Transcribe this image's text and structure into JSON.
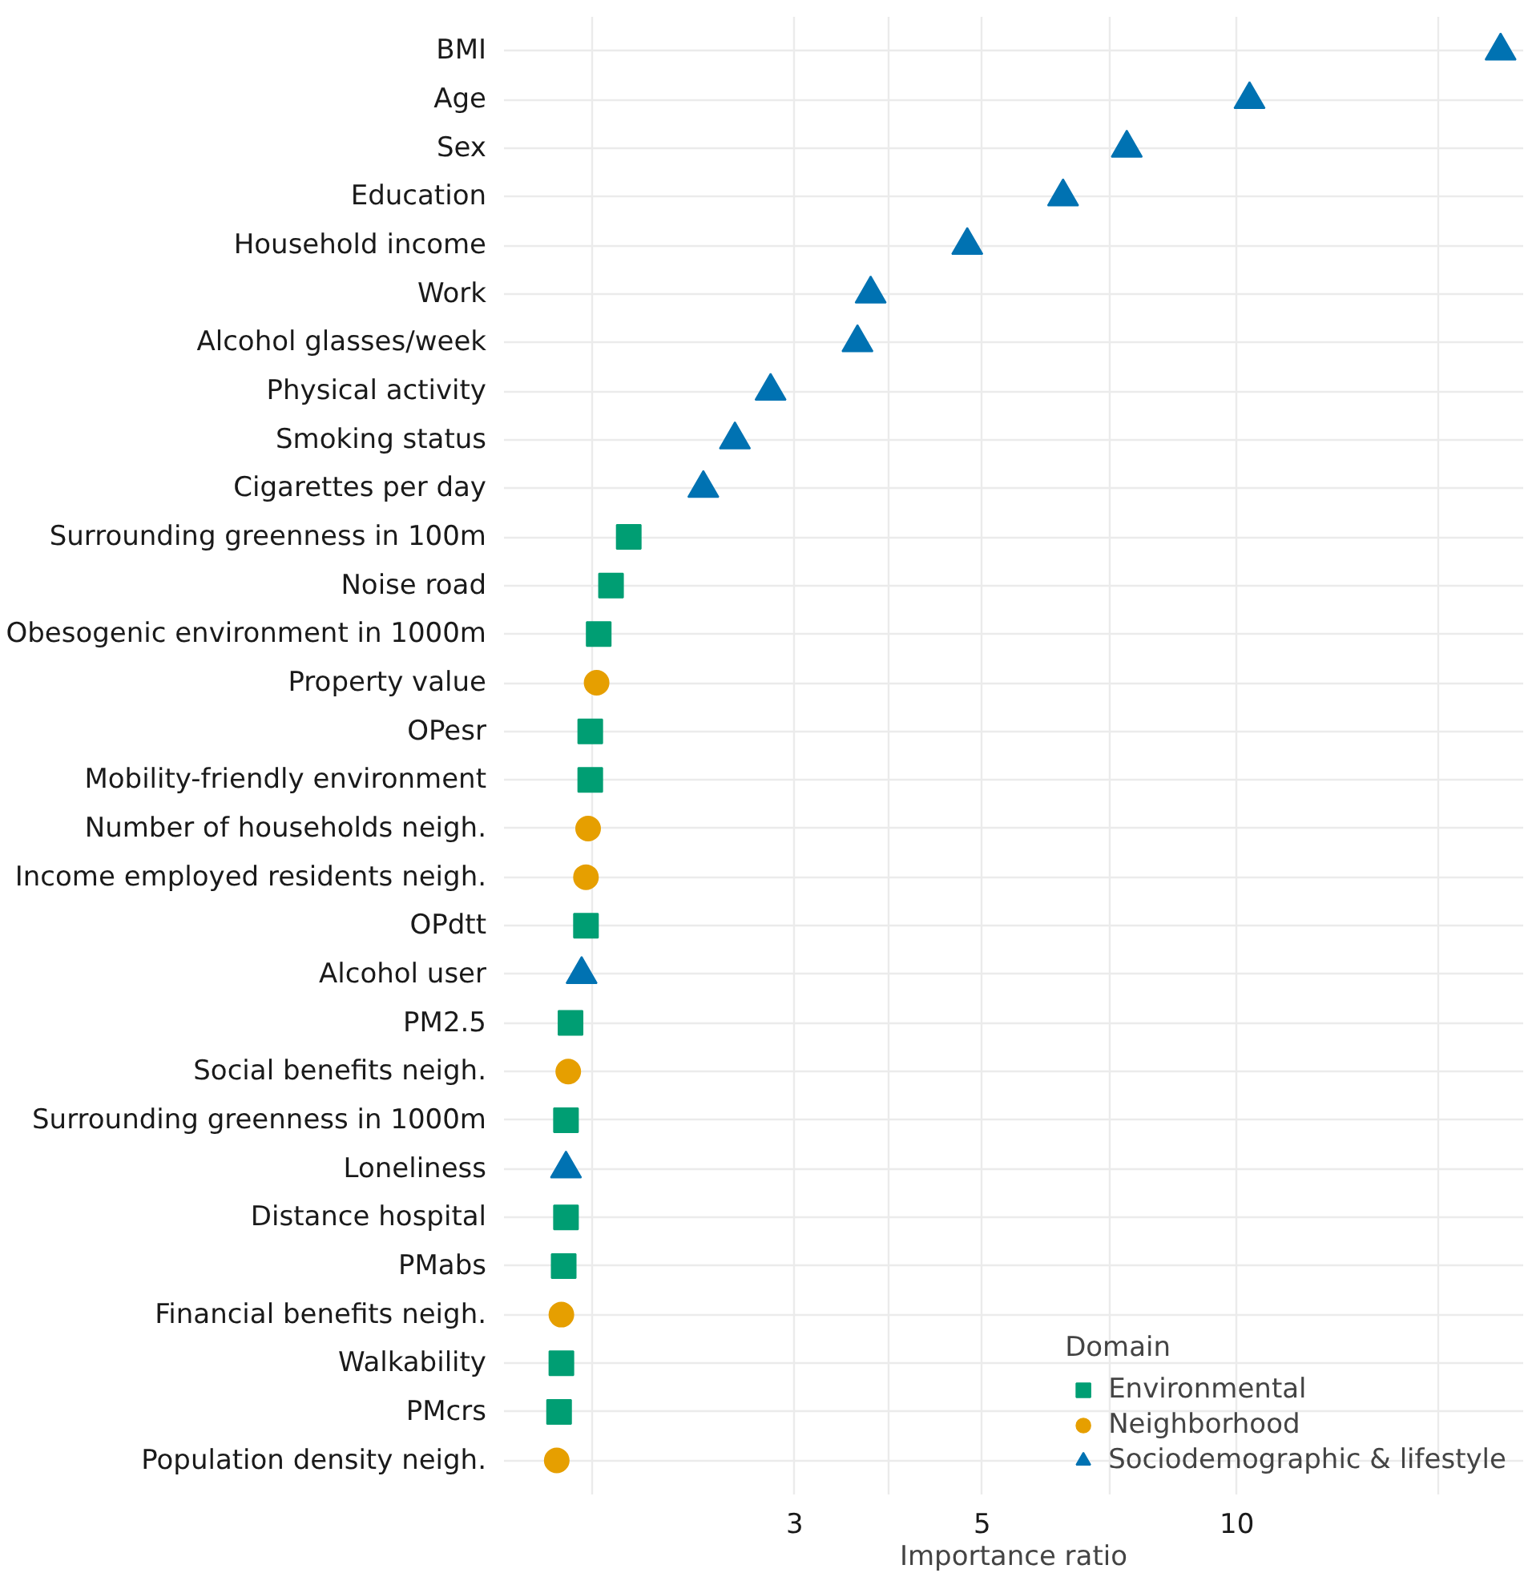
{
  "chart_data": {
    "type": "scatter",
    "orientation": "horizontal",
    "xlabel": "Importance ratio",
    "legend_title": "Domain",
    "legend": "bottom right",
    "grid": true,
    "log": "x",
    "xlim": [
      1.36,
      21.8
    ],
    "xticks": [
      {
        "value": 1.73,
        "label": null
      },
      3,
      {
        "value": 3.87,
        "label": null
      },
      5,
      {
        "value": 7.07,
        "label": null
      },
      10,
      {
        "value": 17.3,
        "label": null
      }
    ],
    "categories": [
      "BMI",
      "Age",
      "Sex",
      "Education",
      "Household income",
      "Work",
      "Alcohol glasses/week",
      "Physical activity",
      "Smoking status",
      "Cigarettes per day",
      "Surrounding greenness in 100m",
      "Noise road",
      "Obesogenic environment in 1000m",
      "Property value",
      "OPesr",
      "Mobility-friendly environment",
      "Number of households neigh.",
      "Income employed residents neigh.",
      "OPdtt",
      "Alcohol user",
      "PM2.5",
      "Social benefits neigh.",
      "Surrounding greenness in 1000m",
      "Loneliness",
      "Distance hospital",
      "PMabs",
      "Financial benefits neigh.",
      "Walkability",
      "PMcrs",
      "Population density neigh."
    ],
    "series": [
      {
        "name": "Environmental",
        "color": "#009e73",
        "marker": "square",
        "values": [
          null,
          null,
          null,
          null,
          null,
          null,
          null,
          null,
          null,
          null,
          1.91,
          1.82,
          1.76,
          null,
          1.72,
          1.72,
          null,
          null,
          1.7,
          null,
          1.63,
          null,
          1.61,
          null,
          1.61,
          1.6,
          null,
          1.59,
          1.58,
          null
        ]
      },
      {
        "name": "Neighborhood",
        "color": "#e69f00",
        "marker": "circle",
        "values": [
          null,
          null,
          null,
          null,
          null,
          null,
          null,
          null,
          null,
          null,
          null,
          null,
          null,
          1.75,
          null,
          null,
          1.71,
          1.7,
          null,
          null,
          null,
          1.62,
          null,
          null,
          null,
          null,
          1.59,
          null,
          null,
          1.57
        ]
      },
      {
        "name": "Sociodemographic & lifestyle",
        "color": "#0072b2",
        "marker": "triangle",
        "values": [
          20.5,
          10.35,
          7.41,
          6.23,
          4.8,
          3.69,
          3.56,
          2.81,
          2.55,
          2.34,
          null,
          null,
          null,
          null,
          null,
          null,
          null,
          null,
          null,
          1.68,
          null,
          null,
          null,
          1.61,
          null,
          null,
          null,
          null,
          null,
          null
        ]
      }
    ]
  }
}
